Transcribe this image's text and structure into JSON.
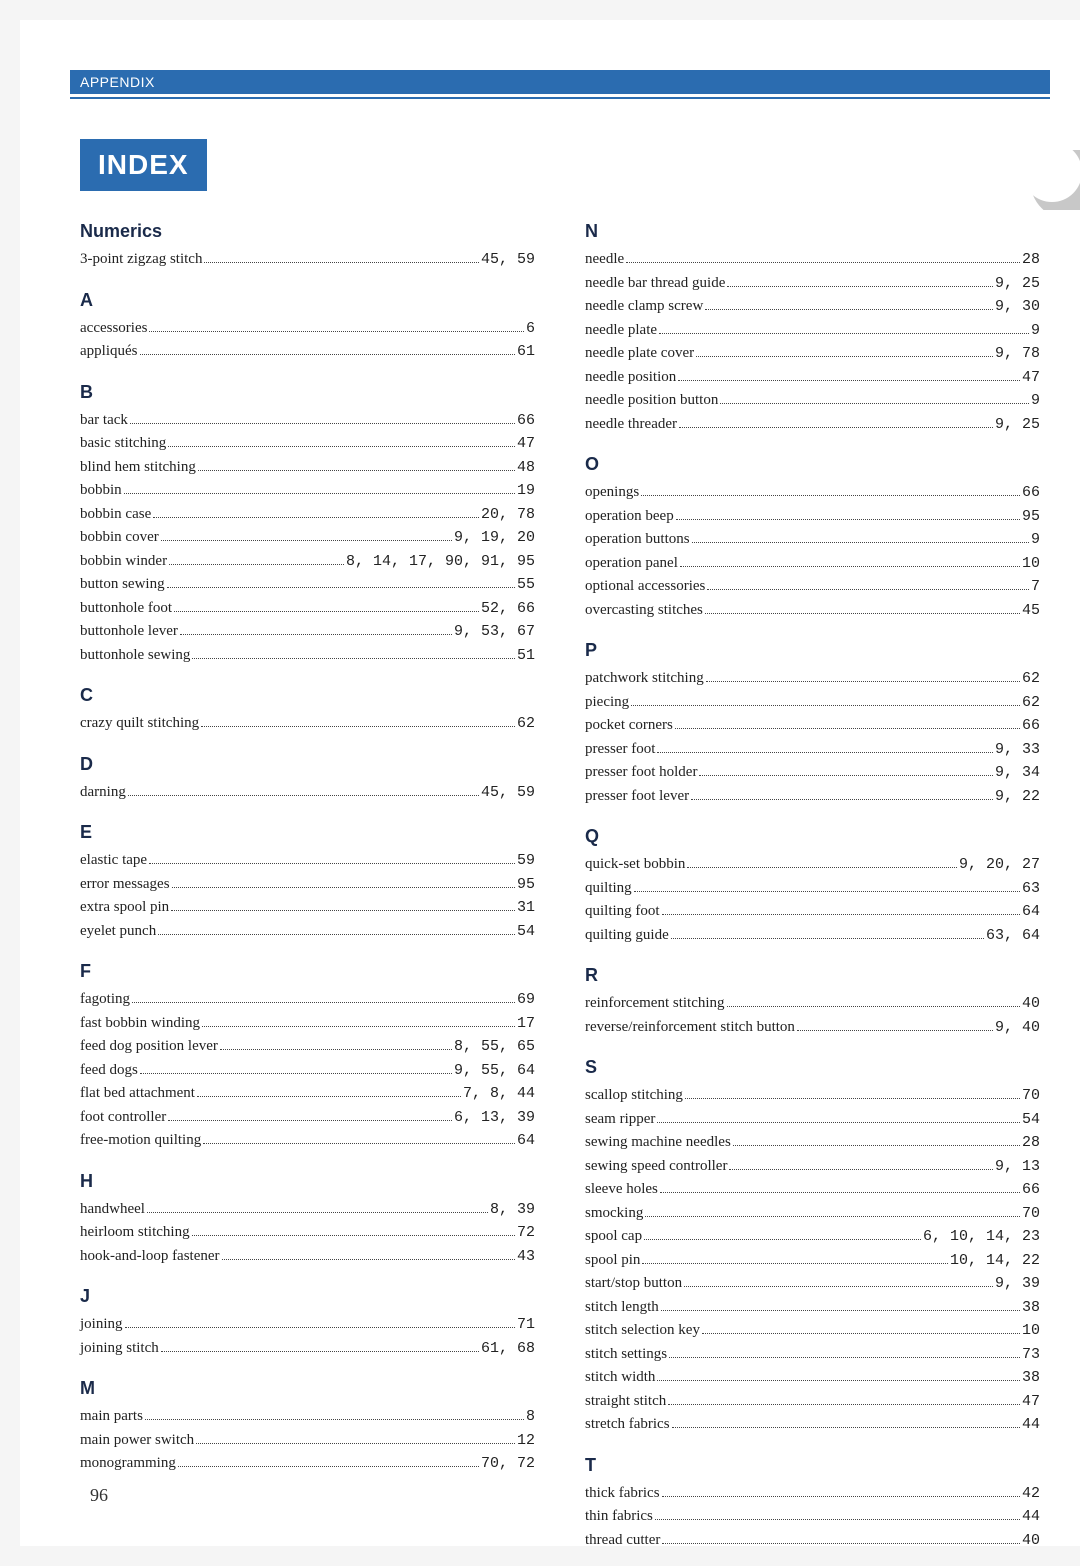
{
  "header": "APPENDIX",
  "title": "INDEX",
  "pageNumber": "96",
  "colors": {
    "accent": "#2b6cb0",
    "heading": "#1a2a4a",
    "text": "#222",
    "moon": "#c8c8c8"
  },
  "left": [
    {
      "head": "Numerics"
    },
    {
      "term": "3-point zigzag stitch",
      "pages": "45, 59"
    },
    {
      "head": "A"
    },
    {
      "term": "accessories",
      "pages": "6"
    },
    {
      "term": "appliqués",
      "pages": "61"
    },
    {
      "head": "B"
    },
    {
      "term": "bar tack",
      "pages": "66"
    },
    {
      "term": "basic stitching",
      "pages": "47"
    },
    {
      "term": "blind hem stitching",
      "pages": "48"
    },
    {
      "term": "bobbin",
      "pages": "19"
    },
    {
      "term": "bobbin case",
      "pages": "20, 78"
    },
    {
      "term": "bobbin cover",
      "pages": "9, 19, 20"
    },
    {
      "term": "bobbin winder",
      "pages": "8, 14, 17, 90, 91, 95"
    },
    {
      "term": "button sewing",
      "pages": "55"
    },
    {
      "term": "buttonhole foot",
      "pages": "52, 66"
    },
    {
      "term": "buttonhole lever",
      "pages": "9, 53, 67"
    },
    {
      "term": "buttonhole sewing",
      "pages": "51"
    },
    {
      "head": "C"
    },
    {
      "term": "crazy quilt stitching",
      "pages": "62"
    },
    {
      "head": "D"
    },
    {
      "term": "darning",
      "pages": "45, 59"
    },
    {
      "head": "E"
    },
    {
      "term": "elastic tape",
      "pages": "59"
    },
    {
      "term": "error messages",
      "pages": "95"
    },
    {
      "term": "extra spool pin",
      "pages": "31"
    },
    {
      "term": "eyelet punch",
      "pages": "54"
    },
    {
      "head": "F"
    },
    {
      "term": "fagoting",
      "pages": "69"
    },
    {
      "term": "fast bobbin winding",
      "pages": "17"
    },
    {
      "term": "feed dog position lever",
      "pages": "8, 55, 65"
    },
    {
      "term": "feed dogs",
      "pages": "9, 55, 64"
    },
    {
      "term": "flat bed attachment",
      "pages": "7, 8, 44"
    },
    {
      "term": "foot controller",
      "pages": "6, 13, 39"
    },
    {
      "term": "free-motion quilting",
      "pages": "64"
    },
    {
      "head": "H"
    },
    {
      "term": "handwheel",
      "pages": "8, 39"
    },
    {
      "term": "heirloom stitching",
      "pages": "72"
    },
    {
      "term": "hook-and-loop fastener",
      "pages": "43"
    },
    {
      "head": "J"
    },
    {
      "term": "joining",
      "pages": "71"
    },
    {
      "term": "joining stitch",
      "pages": "61, 68"
    },
    {
      "head": "M"
    },
    {
      "term": "main parts",
      "pages": "8"
    },
    {
      "term": "main power switch",
      "pages": "12"
    },
    {
      "term": "monogramming",
      "pages": "70, 72"
    }
  ],
  "right": [
    {
      "head": "N"
    },
    {
      "term": "needle",
      "pages": "28"
    },
    {
      "term": "needle bar thread guide",
      "pages": "9, 25"
    },
    {
      "term": "needle clamp screw",
      "pages": "9, 30"
    },
    {
      "term": "needle plate",
      "pages": "9"
    },
    {
      "term": "needle plate cover",
      "pages": "9, 78"
    },
    {
      "term": "needle position",
      "pages": "47"
    },
    {
      "term": "needle position button",
      "pages": "9"
    },
    {
      "term": "needle threader",
      "pages": "9, 25"
    },
    {
      "head": "O"
    },
    {
      "term": "openings",
      "pages": "66"
    },
    {
      "term": "operation beep",
      "pages": "95"
    },
    {
      "term": "operation buttons",
      "pages": "9"
    },
    {
      "term": "operation panel",
      "pages": "10"
    },
    {
      "term": "optional accessories",
      "pages": "7"
    },
    {
      "term": "overcasting stitches",
      "pages": "45"
    },
    {
      "head": "P"
    },
    {
      "term": "patchwork stitching",
      "pages": "62"
    },
    {
      "term": "piecing",
      "pages": "62"
    },
    {
      "term": "pocket corners",
      "pages": "66"
    },
    {
      "term": "presser foot",
      "pages": "9, 33"
    },
    {
      "term": "presser foot holder",
      "pages": "9, 34"
    },
    {
      "term": "presser foot lever",
      "pages": "9, 22"
    },
    {
      "head": "Q"
    },
    {
      "term": "quick-set bobbin",
      "pages": "9, 20, 27"
    },
    {
      "term": "quilting",
      "pages": "63"
    },
    {
      "term": "quilting foot",
      "pages": "64"
    },
    {
      "term": "quilting guide",
      "pages": "63, 64"
    },
    {
      "head": "R"
    },
    {
      "term": "reinforcement stitching",
      "pages": "40"
    },
    {
      "term": "reverse/reinforcement stitch button",
      "pages": "9, 40"
    },
    {
      "head": "S"
    },
    {
      "term": "scallop stitching",
      "pages": "70"
    },
    {
      "term": "seam ripper",
      "pages": "54"
    },
    {
      "term": "sewing machine needles",
      "pages": "28"
    },
    {
      "term": "sewing speed controller",
      "pages": "9, 13"
    },
    {
      "term": "sleeve holes",
      "pages": "66"
    },
    {
      "term": "smocking",
      "pages": "70"
    },
    {
      "term": "spool cap",
      "pages": "6, 10, 14, 23"
    },
    {
      "term": "spool pin",
      "pages": "10, 14, 22"
    },
    {
      "term": "start/stop button",
      "pages": "9, 39"
    },
    {
      "term": "stitch length",
      "pages": "38"
    },
    {
      "term": "stitch selection key",
      "pages": "10"
    },
    {
      "term": "stitch settings",
      "pages": "73"
    },
    {
      "term": "stitch width",
      "pages": "38"
    },
    {
      "term": "straight stitch",
      "pages": "47"
    },
    {
      "term": "stretch fabrics",
      "pages": "44"
    },
    {
      "head": "T"
    },
    {
      "term": "thick fabrics",
      "pages": "42"
    },
    {
      "term": "thin fabrics",
      "pages": "44"
    },
    {
      "term": "thread cutter",
      "pages": "40"
    }
  ]
}
